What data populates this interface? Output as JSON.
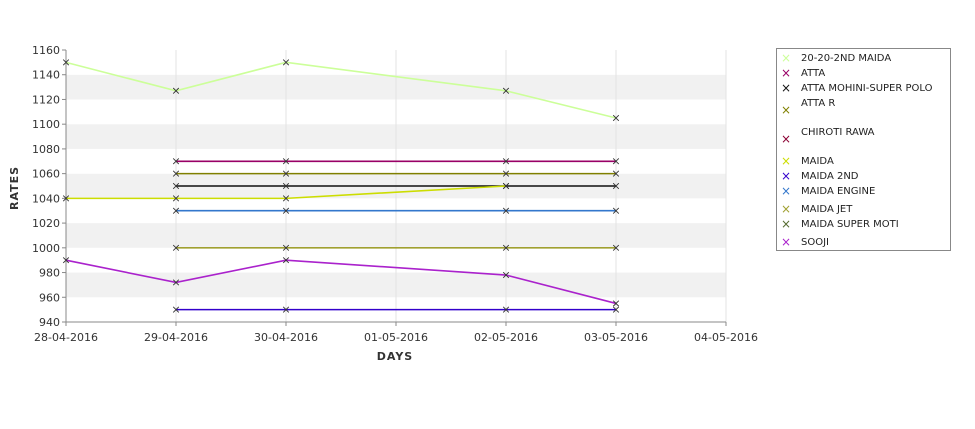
{
  "chart_data": {
    "type": "line",
    "xlabel": "DAYS",
    "ylabel": "RATES",
    "ylim": [
      940,
      1160
    ],
    "y_ticks": [
      940,
      960,
      980,
      1000,
      1020,
      1040,
      1060,
      1080,
      1100,
      1120,
      1140,
      1160
    ],
    "x_ticks": [
      "28-04-2016",
      "29-04-2016",
      "30-04-2016",
      "01-05-2016",
      "02-05-2016",
      "03-05-2016",
      "04-05-2016"
    ],
    "grid": true,
    "legend_position": "right",
    "series": [
      {
        "name": "20-20-2ND MAIDA",
        "color": "#ccff99",
        "points": [
          [
            "28-04-2016",
            1150
          ],
          [
            "29-04-2016",
            1127
          ],
          [
            "30-04-2016",
            1150
          ],
          [
            "02-05-2016",
            1127
          ],
          [
            "03-05-2016",
            1105
          ]
        ]
      },
      {
        "name": "ATTA",
        "color": "#990066",
        "points": [
          [
            "29-04-2016",
            1070
          ],
          [
            "30-04-2016",
            1070
          ],
          [
            "02-05-2016",
            1070
          ],
          [
            "03-05-2016",
            1070
          ]
        ]
      },
      {
        "name": "ATTA MOHINI-SUPER POLO",
        "color": "#111111",
        "points": [
          [
            "29-04-2016",
            1050
          ],
          [
            "30-04-2016",
            1050
          ],
          [
            "02-05-2016",
            1050
          ],
          [
            "03-05-2016",
            1050
          ]
        ]
      },
      {
        "name": "ATTA R",
        "color": "#808000",
        "points": [
          [
            "29-04-2016",
            1060
          ],
          [
            "30-04-2016",
            1060
          ],
          [
            "02-05-2016",
            1060
          ],
          [
            "03-05-2016",
            1060
          ]
        ]
      },
      {
        "name": "CHIROTI RAWA",
        "color": "#8b0033",
        "points": []
      },
      {
        "name": "MAIDA",
        "color": "#ccdd00",
        "points": [
          [
            "28-04-2016",
            1040
          ],
          [
            "29-04-2016",
            1040
          ],
          [
            "30-04-2016",
            1040
          ],
          [
            "02-05-2016",
            1050
          ]
        ]
      },
      {
        "name": "MAIDA 2ND",
        "color": "#3300cc",
        "points": [
          [
            "29-04-2016",
            950
          ],
          [
            "30-04-2016",
            950
          ],
          [
            "02-05-2016",
            950
          ],
          [
            "03-05-2016",
            950
          ]
        ]
      },
      {
        "name": "MAIDA ENGINE",
        "color": "#3377cc",
        "points": [
          [
            "29-04-2016",
            1030
          ],
          [
            "30-04-2016",
            1030
          ],
          [
            "02-05-2016",
            1030
          ],
          [
            "03-05-2016",
            1030
          ]
        ]
      },
      {
        "name": "MAIDA JET",
        "color": "#a0a030",
        "points": [
          [
            "29-04-2016",
            1000
          ],
          [
            "30-04-2016",
            1000
          ],
          [
            "02-05-2016",
            1000
          ],
          [
            "03-05-2016",
            1000
          ]
        ]
      },
      {
        "name": "MAIDA SUPER MOTI",
        "color": "#556b2f",
        "points": []
      },
      {
        "name": "SOOJI",
        "color": "#aa22cc",
        "points": [
          [
            "28-04-2016",
            990
          ],
          [
            "29-04-2016",
            972
          ],
          [
            "30-04-2016",
            990
          ],
          [
            "02-05-2016",
            978
          ],
          [
            "03-05-2016",
            955
          ]
        ]
      }
    ]
  }
}
